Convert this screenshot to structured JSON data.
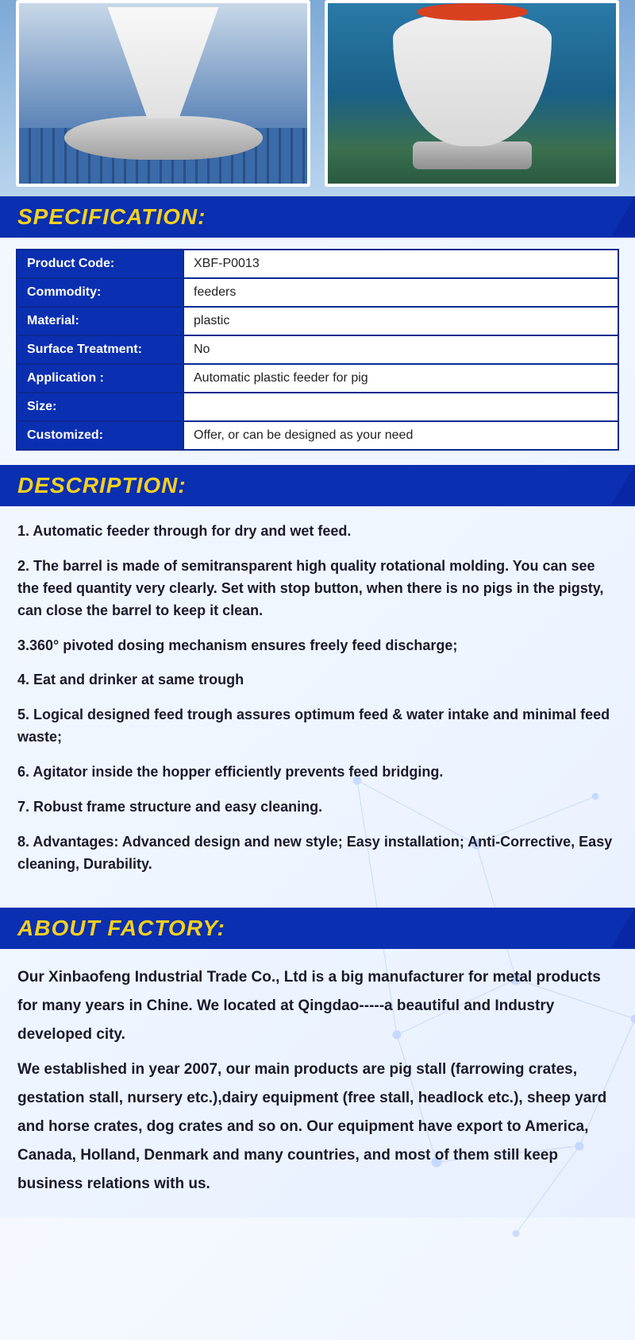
{
  "images": {
    "img1_bg_top": "#c8d8e8",
    "img1_bg_bottom": "#3a6aa8",
    "img2_bg_top": "#2a7aa8",
    "feeder_lid_color": "#d94020",
    "image_border": "#ffffff"
  },
  "style": {
    "header_bg": "#0a2fb0",
    "header_text_color": "#f5d020",
    "table_border": "#0a2a90",
    "table_label_bg": "#0a2fb0",
    "table_label_color": "#ffffff",
    "table_value_bg": "#ffffff",
    "body_text_color": "#1a1a2a",
    "page_bg_start": "#f5f9ff",
    "page_bg_end": "#e8f0ff",
    "title_fontsize": 28,
    "desc_fontsize": 18,
    "about_fontsize": 19
  },
  "sections": {
    "spec_title": "SPECIFICATION:",
    "desc_title": "DESCRIPTION:",
    "about_title": "ABOUT FACTORY:"
  },
  "spec": {
    "rows": [
      {
        "label": "Product Code:",
        "value": "XBF-P0013"
      },
      {
        "label": "Commodity:",
        "value": "feeders"
      },
      {
        "label": "Material:",
        "value": "plastic"
      },
      {
        "label": "Surface Treatment:",
        "value": "No"
      },
      {
        "label": "Application :",
        "value": "Automatic plastic feeder for pig"
      },
      {
        "label": "Size:",
        "value": ""
      },
      {
        "label": "Customized:",
        "value": "Offer, or can be designed as your need"
      }
    ]
  },
  "description": {
    "items": [
      "1. Automatic feeder through for dry and wet feed.",
      "2. The barrel is made of semitransparent high quality rotational molding. You can see the feed quantity very clearly. Set with stop button, when there is no pigs in the pigsty, can close the barrel to keep it clean.",
      "3.360° pivoted dosing mechanism ensures freely feed discharge;",
      "4. Eat and drinker at same trough",
      "5. Logical designed feed trough assures optimum feed & water intake and minimal feed waste;",
      "6. Agitator inside the hopper efficiently prevents feed bridging.",
      "7. Robust frame structure and easy cleaning.",
      "8. Advantages: Advanced design and new style; Easy installation; Anti-Corrective, Easy cleaning, Durability."
    ]
  },
  "about": {
    "paragraphs": [
      "Our Xinbaofeng Industrial Trade Co., Ltd is a big manufacturer for metal products for many years in Chine. We located at Qingdao-----a beautiful and Industry developed city.",
      "We established in year 2007, our main products are pig stall (farrowing crates, gestation stall, nursery etc.),dairy equipment (free stall, headlock etc.), sheep yard and horse crates, dog crates and so on. Our equipment have export to America, Canada, Holland, Denmark and many countries, and most of them still keep business relations with us."
    ]
  }
}
